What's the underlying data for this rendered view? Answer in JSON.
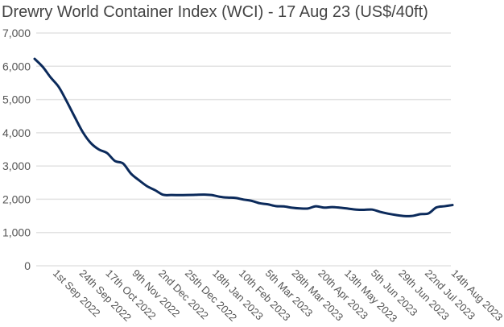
{
  "chart_data": {
    "type": "line",
    "title": "Drewry World Container Index (WCI) - 17 Aug 23 (US$/40ft)",
    "xlabel": "",
    "ylabel": "",
    "ylim": [
      0,
      7000
    ],
    "yticks": [
      "0",
      "1,000",
      "2,000",
      "3,000",
      "4,000",
      "5,000",
      "6,000",
      "7,000"
    ],
    "ytick_values": [
      0,
      1000,
      2000,
      3000,
      4000,
      5000,
      6000,
      7000
    ],
    "xticks": [
      {
        "label": "1st Sep 2022",
        "date": "2022-09-01"
      },
      {
        "label": "24th Sep 2022",
        "date": "2022-09-24"
      },
      {
        "label": "17th Oct 2022",
        "date": "2022-10-17"
      },
      {
        "label": "9th Nov 2022",
        "date": "2022-11-09"
      },
      {
        "label": "2nd Dec 2022",
        "date": "2022-12-02"
      },
      {
        "label": "25th Dec 2022",
        "date": "2022-12-25"
      },
      {
        "label": "18th Jan 2023",
        "date": "2023-01-18"
      },
      {
        "label": "10th Feb 2023",
        "date": "2023-02-10"
      },
      {
        "label": "5th Mar 2023",
        "date": "2023-03-05"
      },
      {
        "label": "28th Mar 2023",
        "date": "2023-03-28"
      },
      {
        "label": "20th Apr 2023",
        "date": "2023-04-20"
      },
      {
        "label": "13th May 2023",
        "date": "2023-05-13"
      },
      {
        "label": "5th Jun 2023",
        "date": "2023-06-05"
      },
      {
        "label": "29th Jun 2023",
        "date": "2023-06-29"
      },
      {
        "label": "22nd Jul 2023",
        "date": "2023-07-22"
      },
      {
        "label": "14th Aug 2023",
        "date": "2023-08-14"
      }
    ],
    "grid": true,
    "line_color": "#0b2a5b",
    "series": [
      {
        "x": [
          "2022-08-18",
          "2022-08-25",
          "2022-09-01",
          "2022-09-08",
          "2022-09-15",
          "2022-09-22",
          "2022-09-29",
          "2022-10-06",
          "2022-10-13",
          "2022-10-20",
          "2022-10-27",
          "2022-11-03",
          "2022-11-10",
          "2022-11-17",
          "2022-11-24",
          "2022-12-01",
          "2022-12-08",
          "2022-12-15",
          "2022-12-22",
          "2022-12-29",
          "2023-01-05",
          "2023-01-12",
          "2023-01-19",
          "2023-01-26",
          "2023-02-02",
          "2023-02-09",
          "2023-02-16",
          "2023-02-23",
          "2023-03-02",
          "2023-03-09",
          "2023-03-16",
          "2023-03-23",
          "2023-03-30",
          "2023-04-06",
          "2023-04-13",
          "2023-04-20",
          "2023-04-27",
          "2023-05-04",
          "2023-05-11",
          "2023-05-18",
          "2023-05-25",
          "2023-06-01",
          "2023-06-08",
          "2023-06-15",
          "2023-06-22",
          "2023-06-29",
          "2023-07-06",
          "2023-07-13",
          "2023-07-20",
          "2023-07-27",
          "2023-08-03",
          "2023-08-10",
          "2023-08-17"
        ],
        "values": [
          6224,
          5985,
          5662,
          5378,
          4942,
          4472,
          4018,
          3689,
          3497,
          3393,
          3151,
          3077,
          2769,
          2571,
          2392,
          2273,
          2135,
          2128,
          2124,
          2127,
          2134,
          2142,
          2128,
          2078,
          2052,
          2041,
          1991,
          1953,
          1881,
          1850,
          1796,
          1786,
          1747,
          1725,
          1723,
          1790,
          1750,
          1765,
          1747,
          1720,
          1690,
          1683,
          1691,
          1621,
          1567,
          1525,
          1495,
          1500,
          1554,
          1575,
          1755,
          1791,
          1827
        ]
      }
    ]
  }
}
